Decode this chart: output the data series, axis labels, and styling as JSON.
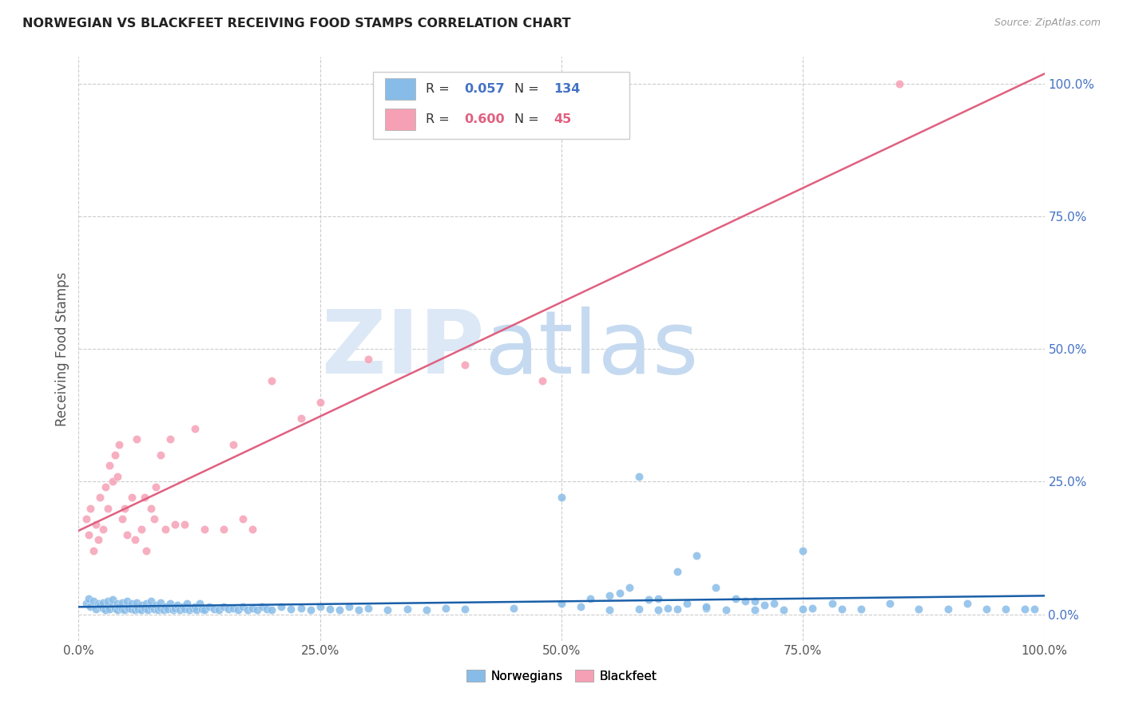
{
  "title": "NORWEGIAN VS BLACKFEET RECEIVING FOOD STAMPS CORRELATION CHART",
  "source": "Source: ZipAtlas.com",
  "ylabel": "Receiving Food Stamps",
  "xlim": [
    0,
    1
  ],
  "ylim": [
    -0.05,
    1.05
  ],
  "x_tick_labels": [
    "0.0%",
    "25.0%",
    "50.0%",
    "75.0%",
    "100.0%"
  ],
  "x_tick_positions": [
    0.0,
    0.25,
    0.5,
    0.75,
    1.0
  ],
  "y_tick_labels_right": [
    "100.0%",
    "75.0%",
    "50.0%",
    "25.0%",
    "0.0%"
  ],
  "y_tick_positions": [
    1.0,
    0.75,
    0.5,
    0.25,
    0.0
  ],
  "norwegian_R": 0.057,
  "norwegian_N": 134,
  "blackfeet_R": 0.6,
  "blackfeet_N": 45,
  "norwegian_color": "#88bce8",
  "blackfeet_color": "#f5a0b5",
  "norwegian_line_color": "#1a5fa8",
  "blackfeet_line_color": "#e06080",
  "grid_color": "#cccccc",
  "background_color": "#ffffff",
  "norwegian_x": [
    0.008,
    0.01,
    0.012,
    0.015,
    0.018,
    0.02,
    0.022,
    0.025,
    0.025,
    0.028,
    0.03,
    0.03,
    0.032,
    0.035,
    0.035,
    0.038,
    0.04,
    0.04,
    0.042,
    0.045,
    0.045,
    0.048,
    0.05,
    0.05,
    0.052,
    0.055,
    0.055,
    0.058,
    0.06,
    0.06,
    0.062,
    0.065,
    0.065,
    0.068,
    0.07,
    0.072,
    0.075,
    0.075,
    0.078,
    0.08,
    0.082,
    0.085,
    0.085,
    0.088,
    0.09,
    0.092,
    0.095,
    0.098,
    0.1,
    0.102,
    0.105,
    0.108,
    0.11,
    0.112,
    0.115,
    0.118,
    0.12,
    0.122,
    0.125,
    0.128,
    0.13,
    0.135,
    0.14,
    0.145,
    0.15,
    0.155,
    0.16,
    0.165,
    0.17,
    0.175,
    0.18,
    0.185,
    0.19,
    0.195,
    0.2,
    0.21,
    0.22,
    0.23,
    0.24,
    0.25,
    0.26,
    0.27,
    0.28,
    0.29,
    0.3,
    0.32,
    0.34,
    0.36,
    0.38,
    0.4,
    0.45,
    0.5,
    0.52,
    0.55,
    0.58,
    0.6,
    0.62,
    0.65,
    0.7,
    0.75,
    0.5,
    0.53,
    0.56,
    0.58,
    0.6,
    0.62,
    0.64,
    0.66,
    0.68,
    0.7,
    0.72,
    0.75,
    0.78,
    0.81,
    0.84,
    0.87,
    0.9,
    0.92,
    0.94,
    0.96,
    0.98,
    0.99,
    0.55,
    0.57,
    0.59,
    0.61,
    0.63,
    0.65,
    0.67,
    0.69,
    0.71,
    0.73,
    0.76,
    0.79
  ],
  "norwegian_y": [
    0.02,
    0.03,
    0.015,
    0.025,
    0.01,
    0.02,
    0.018,
    0.012,
    0.022,
    0.008,
    0.015,
    0.025,
    0.01,
    0.018,
    0.028,
    0.012,
    0.008,
    0.02,
    0.015,
    0.01,
    0.022,
    0.008,
    0.015,
    0.025,
    0.012,
    0.01,
    0.02,
    0.008,
    0.015,
    0.022,
    0.01,
    0.008,
    0.018,
    0.012,
    0.02,
    0.008,
    0.015,
    0.025,
    0.01,
    0.018,
    0.008,
    0.012,
    0.022,
    0.008,
    0.015,
    0.01,
    0.02,
    0.008,
    0.012,
    0.018,
    0.008,
    0.015,
    0.01,
    0.02,
    0.008,
    0.012,
    0.015,
    0.008,
    0.02,
    0.01,
    0.008,
    0.015,
    0.01,
    0.008,
    0.015,
    0.01,
    0.012,
    0.008,
    0.015,
    0.008,
    0.012,
    0.008,
    0.015,
    0.01,
    0.008,
    0.015,
    0.01,
    0.012,
    0.008,
    0.015,
    0.01,
    0.008,
    0.015,
    0.008,
    0.012,
    0.008,
    0.01,
    0.008,
    0.012,
    0.01,
    0.012,
    0.02,
    0.015,
    0.008,
    0.01,
    0.008,
    0.01,
    0.012,
    0.008,
    0.01,
    0.22,
    0.03,
    0.04,
    0.26,
    0.03,
    0.08,
    0.11,
    0.05,
    0.03,
    0.025,
    0.02,
    0.12,
    0.02,
    0.01,
    0.02,
    0.01,
    0.01,
    0.02,
    0.01,
    0.01,
    0.01,
    0.01,
    0.035,
    0.05,
    0.028,
    0.012,
    0.02,
    0.015,
    0.008,
    0.025,
    0.018,
    0.008,
    0.012,
    0.01
  ],
  "blackfeet_x": [
    0.008,
    0.01,
    0.012,
    0.015,
    0.018,
    0.02,
    0.022,
    0.025,
    0.028,
    0.03,
    0.032,
    0.035,
    0.038,
    0.04,
    0.042,
    0.045,
    0.048,
    0.05,
    0.055,
    0.058,
    0.06,
    0.065,
    0.068,
    0.07,
    0.075,
    0.078,
    0.08,
    0.085,
    0.09,
    0.095,
    0.1,
    0.11,
    0.12,
    0.13,
    0.15,
    0.16,
    0.17,
    0.18,
    0.2,
    0.23,
    0.25,
    0.3,
    0.4,
    0.48,
    0.85
  ],
  "blackfeet_y": [
    0.18,
    0.15,
    0.2,
    0.12,
    0.17,
    0.14,
    0.22,
    0.16,
    0.24,
    0.2,
    0.28,
    0.25,
    0.3,
    0.26,
    0.32,
    0.18,
    0.2,
    0.15,
    0.22,
    0.14,
    0.33,
    0.16,
    0.22,
    0.12,
    0.2,
    0.18,
    0.24,
    0.3,
    0.16,
    0.33,
    0.17,
    0.17,
    0.35,
    0.16,
    0.16,
    0.32,
    0.18,
    0.16,
    0.44,
    0.37,
    0.4,
    0.48,
    0.47,
    0.44,
    1.0
  ]
}
